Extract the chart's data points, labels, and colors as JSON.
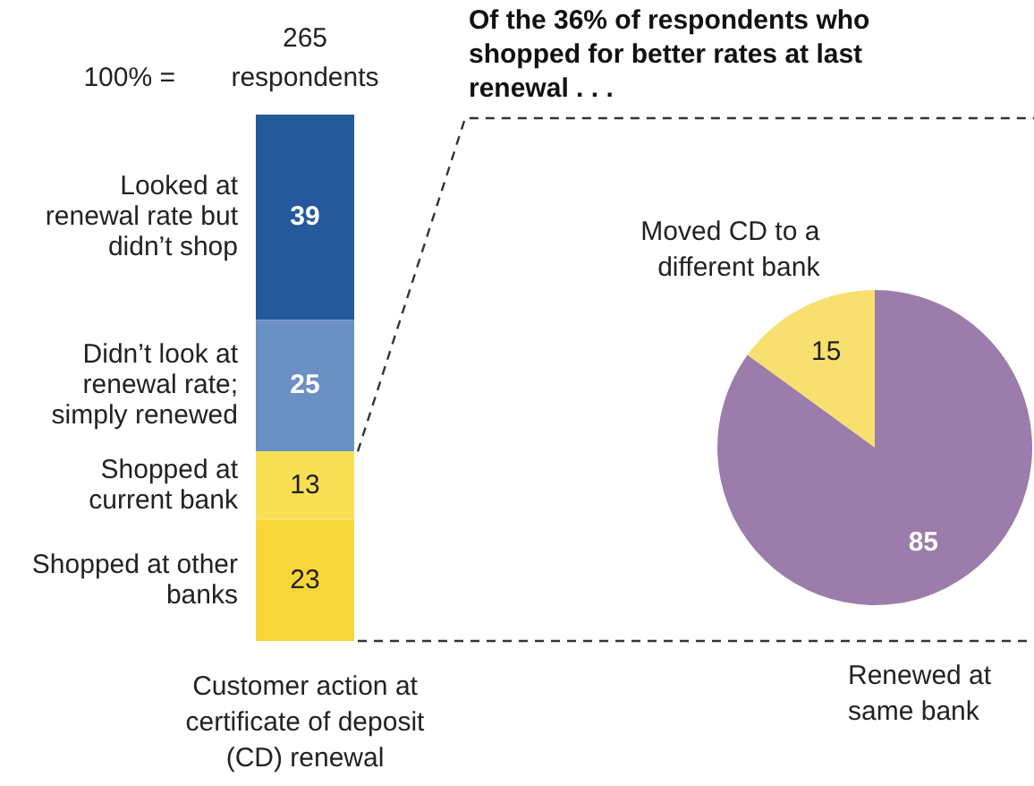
{
  "chart_data": [
    {
      "type": "bar",
      "stacked": true,
      "categories": [
        null
      ],
      "xlabel": "Customer action at certificate of deposit (CD) renewal",
      "annotations": [
        "100% =",
        "265 respondents"
      ],
      "data_labels": true,
      "series": [
        {
          "name": "Shopped at other banks",
          "color": "#f7d63a",
          "values": [
            23
          ]
        },
        {
          "name": "Shopped at current bank",
          "color": "#f9df55",
          "values": [
            13
          ]
        },
        {
          "name": "Didn’t look at renewal rate; simply renewed",
          "color": "#6a90c4",
          "values": [
            25
          ]
        },
        {
          "name": "Looked at renewal rate but didn’t shop",
          "color": "#245a9c",
          "values": [
            39
          ]
        }
      ]
    },
    {
      "type": "pie",
      "title": "Of the 36% of respondents who shopped for better rates at last renewal . . .",
      "categories": [
        "Moved CD to a different bank",
        "Renewed at same bank"
      ],
      "values": [
        15,
        85
      ],
      "colors": [
        "#f7e070",
        "#9b7cab"
      ],
      "data_labels": true
    }
  ]
}
